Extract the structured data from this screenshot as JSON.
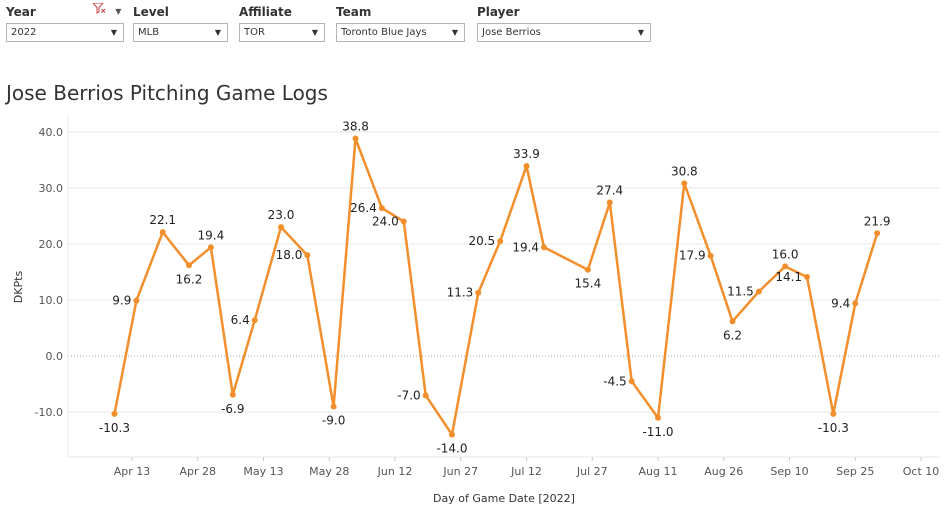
{
  "filters": [
    {
      "label": "Year",
      "value": "2022"
    },
    {
      "label": "Level",
      "value": "MLB"
    },
    {
      "label": "Affiliate",
      "value": "TOR"
    },
    {
      "label": "Team",
      "value": "Toronto Blue Jays"
    },
    {
      "label": "Player",
      "value": "Jose Berrios"
    }
  ],
  "icons": {
    "filter": "clear-filter-icon",
    "menu": "dropdown-menu-icon"
  },
  "colors": {
    "line": "#f28e2b",
    "grid": "#e8e8e8",
    "zero_line": "#a8a8a8"
  },
  "chart_data": {
    "type": "line",
    "title": "Jose Berrios Pitching Game Logs",
    "xlabel": "Day of Game Date [2022]",
    "ylabel": "DKPts",
    "ylim": [
      -18,
      43
    ],
    "y_ticks": [
      "40.0",
      "30.0",
      "20.0",
      "10.0",
      "0.0",
      "-10.0"
    ],
    "x_ticks": [
      "Apr 13",
      "Apr 28",
      "May 13",
      "May 28",
      "Jun 12",
      "Jun 27",
      "Jul 12",
      "Jul 27",
      "Aug 11",
      "Aug 26",
      "Sep 10",
      "Sep 25",
      "Oct 10"
    ],
    "grid": true,
    "legend": "none",
    "series": [
      {
        "points": [
          {
            "x": "2022-04-09",
            "y": -10.3
          },
          {
            "x": "2022-04-14",
            "y": 9.9
          },
          {
            "x": "2022-04-20",
            "y": 22.1
          },
          {
            "x": "2022-04-26",
            "y": 16.2
          },
          {
            "x": "2022-05-01",
            "y": 19.4
          },
          {
            "x": "2022-05-06",
            "y": -6.9
          },
          {
            "x": "2022-05-11",
            "y": 6.4
          },
          {
            "x": "2022-05-17",
            "y": 23.0
          },
          {
            "x": "2022-05-23",
            "y": 18.0
          },
          {
            "x": "2022-05-29",
            "y": -9.0
          },
          {
            "x": "2022-06-03",
            "y": 38.8
          },
          {
            "x": "2022-06-09",
            "y": 26.4
          },
          {
            "x": "2022-06-14",
            "y": 24.0
          },
          {
            "x": "2022-06-19",
            "y": -7.0
          },
          {
            "x": "2022-06-25",
            "y": -14.0
          },
          {
            "x": "2022-07-01",
            "y": 11.3
          },
          {
            "x": "2022-07-06",
            "y": 20.5
          },
          {
            "x": "2022-07-12",
            "y": 33.9
          },
          {
            "x": "2022-07-16",
            "y": 19.4
          },
          {
            "x": "2022-07-26",
            "y": 15.4
          },
          {
            "x": "2022-07-31",
            "y": 27.4
          },
          {
            "x": "2022-08-05",
            "y": -4.5
          },
          {
            "x": "2022-08-11",
            "y": -11.0
          },
          {
            "x": "2022-08-17",
            "y": 30.8
          },
          {
            "x": "2022-08-23",
            "y": 17.9
          },
          {
            "x": "2022-08-28",
            "y": 6.2
          },
          {
            "x": "2022-09-03",
            "y": 11.5
          },
          {
            "x": "2022-09-09",
            "y": 16.0
          },
          {
            "x": "2022-09-14",
            "y": 14.1
          },
          {
            "x": "2022-09-20",
            "y": -10.3
          },
          {
            "x": "2022-09-25",
            "y": 9.4
          },
          {
            "x": "2022-09-30",
            "y": 21.9
          }
        ]
      }
    ]
  }
}
